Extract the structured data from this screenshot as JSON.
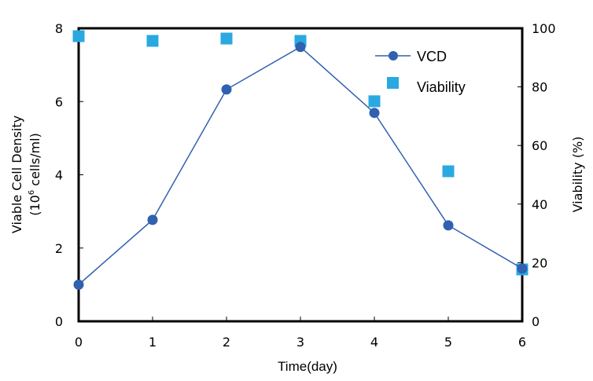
{
  "chart_data": {
    "type": "line",
    "title": "",
    "xlabel": "Time(day)",
    "ylabel_line1": "Viable Cell Density",
    "ylabel_line2_prefix": "(10",
    "ylabel_line2_sup": "6",
    "ylabel_line2_suffix": " cells/ml)",
    "y2label": "Viability (%)",
    "x": [
      0,
      1,
      2,
      3,
      4,
      5,
      6
    ],
    "xlim": [
      0,
      6
    ],
    "ylim": [
      0,
      8
    ],
    "y2lim": [
      0,
      100
    ],
    "x_ticks": [
      "0",
      "1",
      "2",
      "3",
      "4",
      "5",
      "6"
    ],
    "y_ticks": [
      "0",
      "2",
      "4",
      "6",
      "8"
    ],
    "y2_ticks": [
      "0",
      "20",
      "40",
      "60",
      "80",
      "100"
    ],
    "grid": false,
    "legend_position": "top-right",
    "series": [
      {
        "name": "VCD",
        "axis": "left",
        "type": "line-marker",
        "marker": "circle",
        "color": "#3060b0",
        "values": [
          1.0,
          2.77,
          6.33,
          7.49,
          5.69,
          2.62,
          1.44
        ]
      },
      {
        "name": "Viability",
        "axis": "right",
        "type": "scatter",
        "marker": "square",
        "color": "#29a9e0",
        "values": [
          97.3,
          95.7,
          96.5,
          95.7,
          75.1,
          51.2,
          17.7
        ]
      }
    ]
  }
}
